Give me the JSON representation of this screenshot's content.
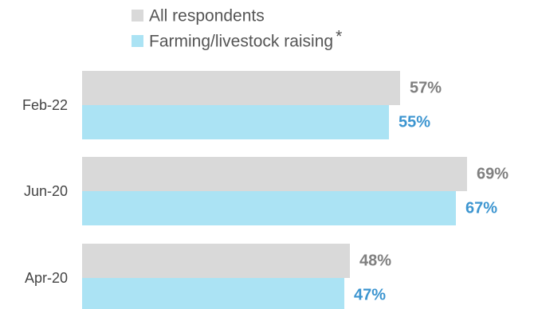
{
  "chart_data": {
    "type": "bar",
    "orientation": "horizontal",
    "categories": [
      "Feb-22",
      "Jun-20",
      "Apr-20"
    ],
    "series": [
      {
        "name": "All respondents",
        "values": [
          57,
          69,
          48
        ],
        "color": "#d9d9d9",
        "label_color": "#7f7f7f"
      },
      {
        "name": "Farming/livestock raising",
        "values": [
          55,
          67,
          47
        ],
        "color": "#abe3f4",
        "label_color": "#3c95d0"
      }
    ],
    "legend_suffix": "*",
    "value_format": "%",
    "xlim": [
      0,
      100
    ],
    "grid": false,
    "legend": "top-left"
  }
}
